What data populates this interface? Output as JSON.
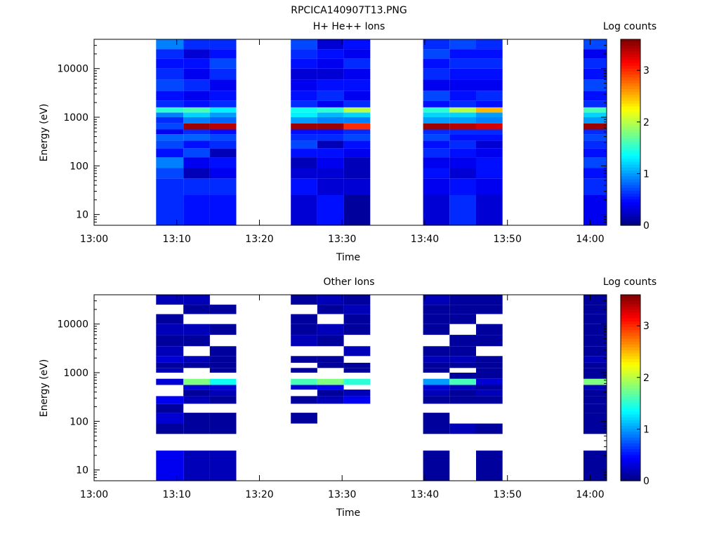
{
  "figure_title": "RPCICA140907T13.PNG",
  "chart_data": [
    {
      "type": "heatmap",
      "title": "H+ He++ Ions",
      "xlabel": "Time",
      "ylabel": "Energy (eV)",
      "colorbar_label": "Log counts",
      "x_ticks": [
        "13:00",
        "13:10",
        "13:20",
        "13:30",
        "13:40",
        "13:50",
        "14:00"
      ],
      "x_range_minutes": [
        0,
        62
      ],
      "y_scale": "log",
      "y_ticks": [
        10,
        100,
        1000,
        10000
      ],
      "y_tick_labels": [
        "10",
        "100",
        "1000",
        "10000"
      ],
      "ylim": [
        6,
        40000
      ],
      "colorbar_ticks": [
        0,
        1,
        2,
        3
      ],
      "colorbar_range": [
        0,
        3.6
      ],
      "colormap": "jet",
      "columns": [
        {
          "start_min": 7.5,
          "end_min": 10.8
        },
        {
          "start_min": 10.8,
          "end_min": 14.0
        },
        {
          "start_min": 14.0,
          "end_min": 17.2
        },
        {
          "start_min": 23.8,
          "end_min": 27.0
        },
        {
          "start_min": 27.0,
          "end_min": 30.2
        },
        {
          "start_min": 30.2,
          "end_min": 33.4
        },
        {
          "start_min": 39.8,
          "end_min": 43.0
        },
        {
          "start_min": 43.0,
          "end_min": 46.2
        },
        {
          "start_min": 46.2,
          "end_min": 49.4
        },
        {
          "start_min": 59.2,
          "end_min": 62.0
        }
      ],
      "energy_bins": [
        {
          "lo": 6,
          "hi": 25
        },
        {
          "lo": 25,
          "hi": 55
        },
        {
          "lo": 55,
          "hi": 90
        },
        {
          "lo": 90,
          "hi": 150
        },
        {
          "lo": 150,
          "hi": 230
        },
        {
          "lo": 230,
          "hi": 330
        },
        {
          "lo": 330,
          "hi": 450
        },
        {
          "lo": 450,
          "hi": 560
        },
        {
          "lo": 560,
          "hi": 750
        },
        {
          "lo": 750,
          "hi": 1000
        },
        {
          "lo": 1000,
          "hi": 1250
        },
        {
          "lo": 1250,
          "hi": 1600
        },
        {
          "lo": 1600,
          "hi": 2200
        },
        {
          "lo": 2200,
          "hi": 3500
        },
        {
          "lo": 3500,
          "hi": 6000
        },
        {
          "lo": 6000,
          "hi": 10000
        },
        {
          "lo": 10000,
          "hi": 16000
        },
        {
          "lo": 16000,
          "hi": 25000
        },
        {
          "lo": 25000,
          "hi": 40000
        }
      ],
      "log_counts": [
        [
          0.6,
          0.6,
          0.7,
          0.9,
          0.5,
          0.7,
          0.8,
          0.4,
          0.7,
          0.6,
          0.9,
          1.5,
          0.6,
          0.5,
          0.7,
          0.6,
          0.5,
          0.6,
          0.9
        ],
        [
          0.5,
          0.6,
          0.2,
          0.4,
          0.7,
          0.5,
          0.8,
          0.6,
          3.5,
          0.9,
          1.2,
          1.6,
          0.5,
          0.4,
          0.6,
          0.4,
          0.5,
          0.3,
          0.6
        ],
        [
          0.5,
          0.6,
          0.4,
          0.5,
          0.2,
          0.6,
          0.7,
          0.5,
          3.4,
          0.8,
          1.0,
          1.3,
          0.6,
          0.5,
          0.4,
          0.6,
          0.7,
          0.5,
          0.6
        ],
        [
          0.3,
          0.5,
          0.3,
          0.2,
          0.5,
          0.7,
          0.6,
          0.5,
          3.5,
          1.0,
          1.3,
          1.4,
          0.6,
          0.5,
          0.4,
          0.3,
          0.5,
          0.6,
          0.7
        ],
        [
          0.5,
          0.3,
          0.3,
          0.4,
          0.5,
          0.2,
          0.6,
          0.5,
          3.5,
          0.9,
          1.1,
          1.5,
          0.4,
          0.6,
          0.5,
          0.3,
          0.4,
          0.5,
          0.3
        ],
        [
          0.1,
          0.3,
          0.2,
          0.2,
          0.4,
          0.5,
          0.7,
          0.6,
          3.0,
          0.9,
          1.2,
          2.0,
          0.6,
          0.4,
          0.5,
          0.4,
          0.6,
          0.4,
          0.5
        ],
        [
          0.3,
          0.4,
          0.5,
          0.4,
          0.6,
          0.5,
          0.7,
          0.6,
          3.5,
          1.0,
          1.2,
          1.5,
          0.5,
          0.7,
          0.4,
          0.6,
          0.5,
          0.7,
          0.6
        ],
        [
          0.6,
          0.5,
          0.3,
          0.4,
          0.5,
          0.6,
          0.5,
          0.6,
          3.4,
          1.0,
          1.2,
          2.0,
          0.6,
          0.5,
          0.4,
          0.5,
          0.6,
          0.5,
          0.7
        ],
        [
          0.3,
          0.4,
          0.5,
          0.5,
          0.4,
          0.3,
          0.5,
          0.6,
          3.3,
          0.9,
          1.0,
          2.5,
          0.5,
          0.6,
          0.4,
          0.5,
          0.6,
          0.5,
          0.6
        ],
        [
          0.4,
          0.6,
          0.5,
          0.7,
          0.5,
          0.6,
          0.7,
          0.6,
          3.5,
          1.0,
          1.2,
          1.6,
          0.6,
          0.5,
          0.7,
          0.5,
          0.6,
          0.4,
          0.7
        ]
      ]
    },
    {
      "type": "heatmap",
      "title": "Other Ions",
      "xlabel": "Time",
      "ylabel": "Energy (eV)",
      "colorbar_label": "Log counts",
      "x_ticks": [
        "13:00",
        "13:10",
        "13:20",
        "13:30",
        "13:40",
        "13:50",
        "14:00"
      ],
      "x_range_minutes": [
        0,
        62
      ],
      "y_scale": "log",
      "y_ticks": [
        10,
        100,
        1000,
        10000
      ],
      "y_tick_labels": [
        "10",
        "100",
        "1000",
        "10000"
      ],
      "ylim": [
        6,
        40000
      ],
      "colorbar_ticks": [
        0,
        1,
        2,
        3
      ],
      "colorbar_range": [
        0,
        3.6
      ],
      "colormap": "jet",
      "notes_on_encoding": "cells with null have no counts (white)",
      "log_counts": [
        [
          0.4,
          null,
          0.1,
          0.3,
          0.1,
          0.4,
          null,
          null,
          0.3,
          null,
          0.2,
          0.1,
          0.3,
          0.2,
          0.1,
          0.2,
          0.1,
          null,
          0.2
        ],
        [
          0.2,
          null,
          0.1,
          0.1,
          null,
          0.2,
          0.1,
          0.3,
          1.8,
          null,
          null,
          0.1,
          0.2,
          null,
          0.1,
          0.2,
          null,
          0.1,
          0.2
        ],
        [
          0.2,
          null,
          0.1,
          0.1,
          null,
          0.1,
          0.2,
          0.3,
          1.4,
          null,
          0.1,
          0.1,
          0.1,
          0.1,
          null,
          0.1,
          null,
          0.1,
          null
        ],
        [
          null,
          null,
          null,
          0.1,
          null,
          0.1,
          null,
          0.3,
          1.6,
          null,
          0.1,
          null,
          0.1,
          null,
          0.2,
          0.1,
          0.1,
          null,
          0.1
        ],
        [
          null,
          null,
          null,
          null,
          null,
          0.2,
          0.1,
          0.4,
          1.8,
          null,
          null,
          0.1,
          0.1,
          null,
          0.1,
          0.2,
          null,
          0.1,
          0.2
        ],
        [
          null,
          null,
          null,
          null,
          null,
          0.4,
          0.2,
          null,
          1.5,
          null,
          0.1,
          0.1,
          null,
          0.2,
          null,
          0.1,
          0.1,
          0.2,
          0.1
        ],
        [
          0.1,
          null,
          0.1,
          0.1,
          null,
          0.1,
          0.2,
          0.3,
          1.0,
          null,
          0.1,
          0.1,
          0.2,
          0.1,
          null,
          0.1,
          0.1,
          0.1,
          0.2
        ],
        [
          null,
          null,
          0.2,
          null,
          null,
          0.1,
          0.1,
          0.2,
          1.6,
          0.1,
          null,
          0.1,
          0.2,
          0.1,
          0.1,
          null,
          0.1,
          0.1,
          0.1
        ],
        [
          0.1,
          null,
          0.1,
          null,
          null,
          0.1,
          0.2,
          0.1,
          0.3,
          0.1,
          0.1,
          0.1,
          0.1,
          null,
          0.1,
          0.1,
          null,
          0.1,
          0.1
        ],
        [
          0.1,
          null,
          0.1,
          0.1,
          0.1,
          0.1,
          0.1,
          0.2,
          1.8,
          0.1,
          0.1,
          0.1,
          0.2,
          0.1,
          0.1,
          0.1,
          0.1,
          0.1,
          0.1
        ]
      ]
    }
  ]
}
